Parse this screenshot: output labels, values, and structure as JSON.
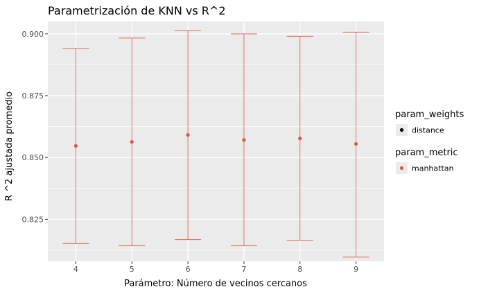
{
  "chart_data": {
    "type": "errorbar",
    "title": "Parametrización de KNN vs R^2",
    "xlabel": "Parámetro: Número de vecinos cercanos",
    "ylabel": "R ^2 ajustada promedio",
    "x": [
      4,
      5,
      6,
      7,
      8,
      9
    ],
    "y": [
      0.8547,
      0.8563,
      0.8591,
      0.8571,
      0.8577,
      0.8555
    ],
    "ymin": [
      0.8152,
      0.8143,
      0.8168,
      0.8143,
      0.8165,
      0.8097
    ],
    "ymax": [
      0.8941,
      0.8983,
      0.9013,
      0.9,
      0.899,
      0.9007
    ],
    "xlim": [
      3.5,
      9.5
    ],
    "ylim": [
      0.808,
      0.905
    ],
    "xticks": [
      "4",
      "5",
      "6",
      "7",
      "8",
      "9"
    ],
    "yticks": [
      "0.825",
      "0.850",
      "0.875",
      "0.900"
    ],
    "ytick_values": [
      0.825,
      0.85,
      0.875,
      0.9
    ],
    "series_color": "#e06b5e",
    "point_color": "#d9574a",
    "panel_background": "#ebebeb",
    "grid": true,
    "legend_position": "right",
    "legends": [
      {
        "title": "param_weights",
        "entries": [
          {
            "label": "distance",
            "color": "#000000"
          }
        ]
      },
      {
        "title": "param_metric",
        "entries": [
          {
            "label": "manhattan",
            "color": "#d9574a"
          }
        ]
      }
    ]
  }
}
